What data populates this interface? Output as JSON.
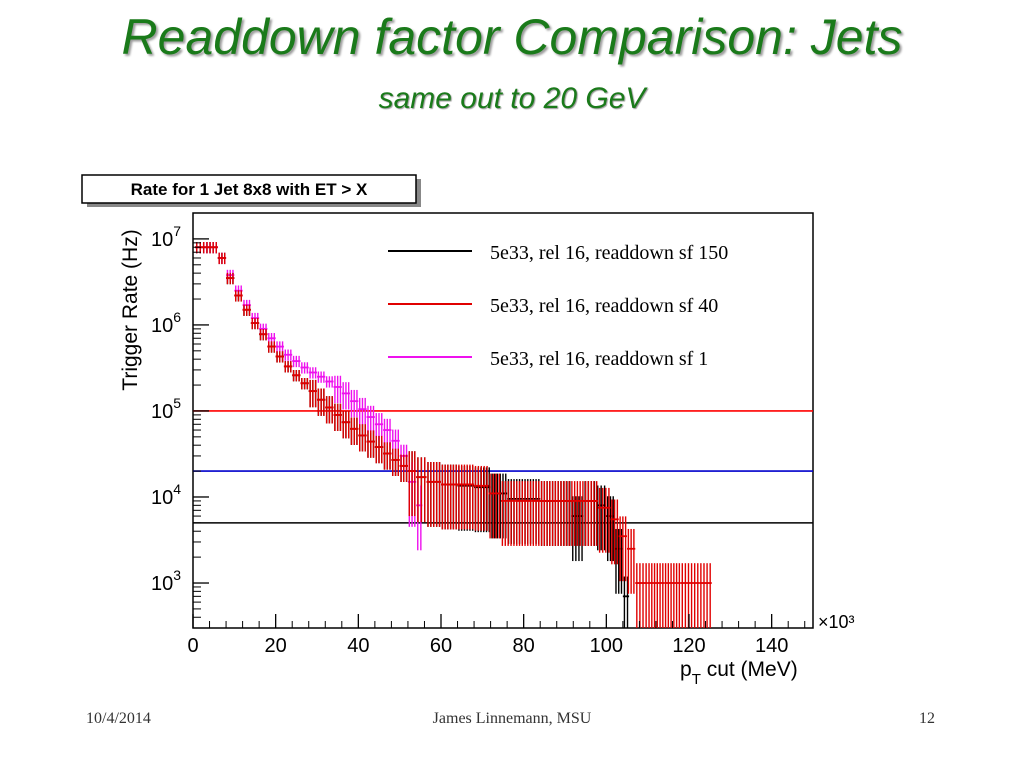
{
  "slide": {
    "title": "Readdown factor Comparison: Jets",
    "subtitle": "same out to 20 GeV",
    "footer_date": "10/4/2014",
    "footer_author": "James Linnemann, MSU",
    "footer_page": "12"
  },
  "chart_data": {
    "type": "line",
    "title": "Rate for 1 Jet 8x8 with ET > X",
    "ylabel": "Trigger Rate (Hz)",
    "xlabel": "p_T cut (MeV)",
    "x_multiplier": "×10³",
    "xlim": [
      0,
      150
    ],
    "ylim": [
      300,
      20000000
    ],
    "yscale": "log",
    "x_ticks": [
      0,
      20,
      40,
      60,
      80,
      100,
      120,
      140
    ],
    "y_ticks": [
      {
        "value": 1000,
        "label": "10",
        "exp": "3"
      },
      {
        "value": 10000,
        "label": "10",
        "exp": "4"
      },
      {
        "value": 100000,
        "label": "10",
        "exp": "5"
      },
      {
        "value": 1000000,
        "label": "10",
        "exp": "6"
      },
      {
        "value": 10000000,
        "label": "10",
        "exp": "7"
      }
    ],
    "legend_position": "top-right",
    "series": [
      {
        "name": "5e33, rel 16, readdown sf 150",
        "color": "#000000",
        "points": [
          [
            1,
            8000000
          ],
          [
            5,
            8000000
          ],
          [
            7,
            6000000
          ],
          [
            9,
            3500000
          ],
          [
            11,
            2200000
          ],
          [
            13,
            1500000
          ],
          [
            15,
            1050000
          ],
          [
            17,
            780000
          ],
          [
            19,
            560000
          ],
          [
            21,
            430000
          ],
          [
            23,
            330000
          ],
          [
            25,
            260000
          ],
          [
            27,
            210000
          ],
          [
            29,
            170000
          ],
          [
            31,
            135000
          ],
          [
            33,
            110000
          ],
          [
            35,
            90000
          ],
          [
            37,
            74000
          ],
          [
            39,
            62000
          ],
          [
            41,
            52000
          ],
          [
            43,
            44000
          ],
          [
            45,
            38000
          ],
          [
            47,
            32000
          ],
          [
            49,
            27000
          ],
          [
            51,
            23000
          ],
          [
            53,
            20000
          ],
          [
            55,
            17000
          ],
          [
            58,
            15000
          ],
          [
            62,
            14000
          ],
          [
            66,
            13500
          ],
          [
            70,
            13000
          ],
          [
            74,
            11000
          ],
          [
            78,
            9500
          ],
          [
            82,
            9500
          ],
          [
            86,
            9000
          ],
          [
            90,
            9000
          ],
          [
            93,
            6000
          ],
          [
            96,
            9000
          ],
          [
            99,
            8000
          ],
          [
            101,
            6000
          ],
          [
            103,
            2500
          ],
          [
            105,
            700
          ]
        ]
      },
      {
        "name": "5e33, rel 16, readdown sf 40",
        "color": "#e00000",
        "points": [
          [
            1,
            8000000
          ],
          [
            5,
            8000000
          ],
          [
            7,
            6000000
          ],
          [
            9,
            3500000
          ],
          [
            11,
            2200000
          ],
          [
            13,
            1500000
          ],
          [
            15,
            1050000
          ],
          [
            17,
            780000
          ],
          [
            19,
            560000
          ],
          [
            21,
            430000
          ],
          [
            23,
            330000
          ],
          [
            25,
            260000
          ],
          [
            27,
            210000
          ],
          [
            29,
            170000
          ],
          [
            31,
            135000
          ],
          [
            33,
            110000
          ],
          [
            35,
            90000
          ],
          [
            37,
            74000
          ],
          [
            39,
            62000
          ],
          [
            41,
            52000
          ],
          [
            43,
            44000
          ],
          [
            45,
            38000
          ],
          [
            47,
            32000
          ],
          [
            49,
            27000
          ],
          [
            51,
            23000
          ],
          [
            53,
            20000
          ],
          [
            55,
            17000
          ],
          [
            58,
            15000
          ],
          [
            62,
            14000
          ],
          [
            66,
            14000
          ],
          [
            70,
            13500
          ],
          [
            73,
            11000
          ],
          [
            76,
            9000
          ],
          [
            80,
            9000
          ],
          [
            84,
            9000
          ],
          [
            88,
            9000
          ],
          [
            92,
            9000
          ],
          [
            96,
            9000
          ],
          [
            100,
            7500
          ],
          [
            102,
            5500
          ],
          [
            104,
            3500
          ],
          [
            106,
            2500
          ],
          [
            108,
            1000
          ],
          [
            112,
            1000
          ],
          [
            116,
            1000
          ],
          [
            120,
            1000
          ],
          [
            125,
            1000
          ]
        ]
      },
      {
        "name": "5e33, rel 16, readdown sf 1",
        "color": "#ee11ee",
        "points": [
          [
            1,
            8000000
          ],
          [
            5,
            8000000
          ],
          [
            7,
            6000000
          ],
          [
            9,
            3800000
          ],
          [
            11,
            2500000
          ],
          [
            13,
            1700000
          ],
          [
            15,
            1200000
          ],
          [
            17,
            900000
          ],
          [
            19,
            700000
          ],
          [
            21,
            560000
          ],
          [
            23,
            450000
          ],
          [
            25,
            380000
          ],
          [
            27,
            320000
          ],
          [
            29,
            280000
          ],
          [
            31,
            250000
          ],
          [
            33,
            220000
          ],
          [
            35,
            190000
          ],
          [
            37,
            160000
          ],
          [
            39,
            130000
          ],
          [
            41,
            105000
          ],
          [
            43,
            85000
          ],
          [
            45,
            70000
          ],
          [
            47,
            60000
          ],
          [
            49,
            45000
          ],
          [
            51,
            30000
          ],
          [
            53,
            15000
          ],
          [
            55,
            8000
          ]
        ]
      }
    ],
    "reference_lines": [
      {
        "y": 100000,
        "color": "#ff0000"
      },
      {
        "y": 20000,
        "color": "#0000cc"
      },
      {
        "y": 5000,
        "color": "#000000"
      }
    ]
  }
}
